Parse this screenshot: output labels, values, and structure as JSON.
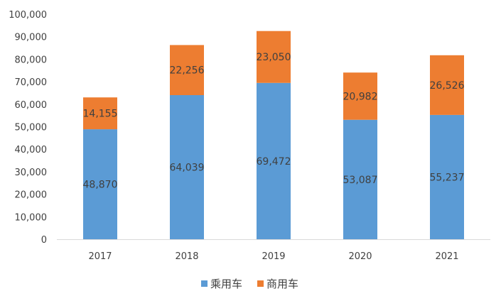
{
  "chart_data": {
    "type": "bar",
    "stacked": true,
    "title": "",
    "xlabel": "",
    "ylabel": "",
    "categories": [
      "2017",
      "2018",
      "2019",
      "2020",
      "2021"
    ],
    "series": [
      {
        "name": "乘用车",
        "color": "#5B9BD5",
        "values": [
          48870,
          64039,
          69472,
          53087,
          55237
        ],
        "labels": [
          "48,870",
          "64,039",
          "69,472",
          "53,087",
          "55,237"
        ]
      },
      {
        "name": "商用车",
        "color": "#ED7D31",
        "values": [
          14155,
          22256,
          23050,
          20982,
          26526
        ],
        "labels": [
          "14,155",
          "22,256",
          "23,050",
          "20,982",
          "26,526"
        ]
      }
    ],
    "ylim": [
      0,
      100000
    ],
    "yticks": [
      0,
      10000,
      20000,
      30000,
      40000,
      50000,
      60000,
      70000,
      80000,
      90000,
      100000
    ],
    "ytick_labels": [
      "0",
      "10,000",
      "20,000",
      "30,000",
      "40,000",
      "50,000",
      "60,000",
      "70,000",
      "80,000",
      "90,000",
      "100,000"
    ],
    "grid": false,
    "legend_position": "bottom"
  }
}
